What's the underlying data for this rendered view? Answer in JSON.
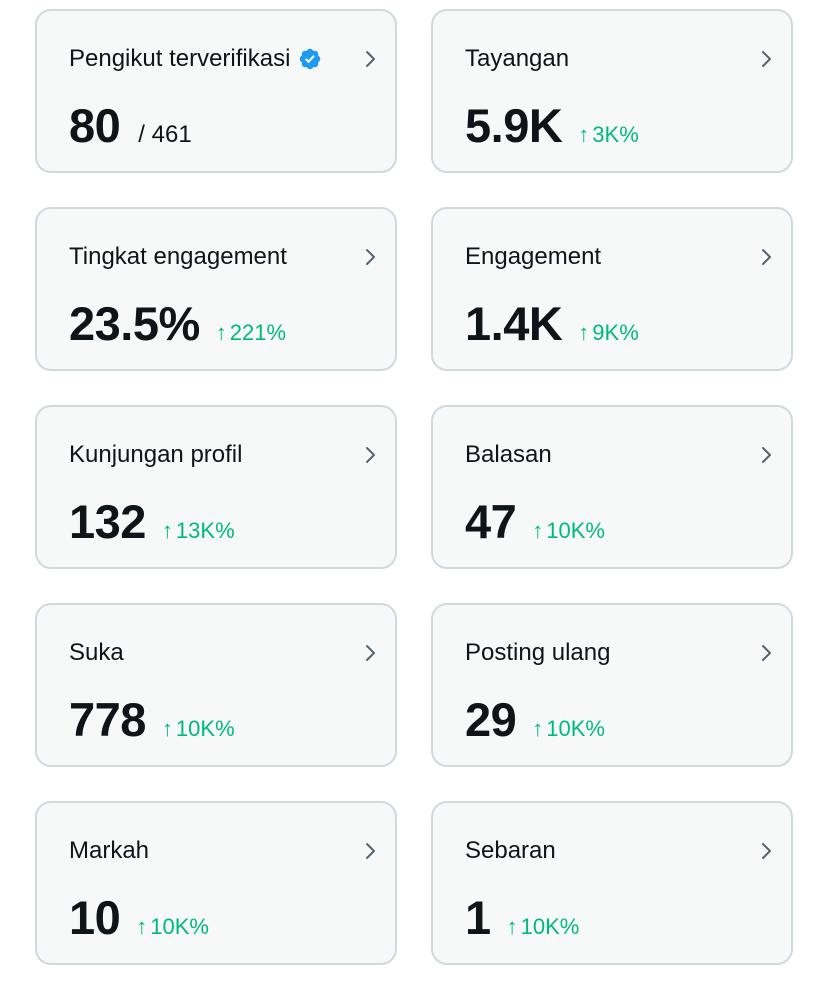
{
  "colors": {
    "card_bg": "#f7f9f9",
    "card_border": "#cfd9de",
    "text_primary": "#0f1419",
    "positive": "#00ba7c",
    "verified_blue": "#1d9bf0",
    "chevron": "#536471"
  },
  "icons": {
    "chevron": "chevron-right-icon",
    "verified": "verified-badge-icon",
    "arrow": "arrow-up-icon"
  },
  "metrics": [
    {
      "label": "Pengikut terverifikasi",
      "value": "80",
      "total": "/ 461",
      "delta_arrow": "",
      "delta": ""
    },
    {
      "label": "Tayangan",
      "value": "5.9K",
      "total": "",
      "delta_arrow": "↑",
      "delta": "3K%"
    },
    {
      "label": "Tingkat engagement",
      "value": "23.5%",
      "total": "",
      "delta_arrow": "↑",
      "delta": "221%"
    },
    {
      "label": "Engagement",
      "value": "1.4K",
      "total": "",
      "delta_arrow": "↑",
      "delta": "9K%"
    },
    {
      "label": "Kunjungan profil",
      "value": "132",
      "total": "",
      "delta_arrow": "↑",
      "delta": "13K%"
    },
    {
      "label": "Balasan",
      "value": "47",
      "total": "",
      "delta_arrow": "↑",
      "delta": "10K%"
    },
    {
      "label": "Suka",
      "value": "778",
      "total": "",
      "delta_arrow": "↑",
      "delta": "10K%"
    },
    {
      "label": "Posting ulang",
      "value": "29",
      "total": "",
      "delta_arrow": "↑",
      "delta": "10K%"
    },
    {
      "label": "Markah",
      "value": "10",
      "total": "",
      "delta_arrow": "↑",
      "delta": "10K%"
    },
    {
      "label": "Sebaran",
      "value": "1",
      "total": "",
      "delta_arrow": "↑",
      "delta": "10K%"
    }
  ]
}
